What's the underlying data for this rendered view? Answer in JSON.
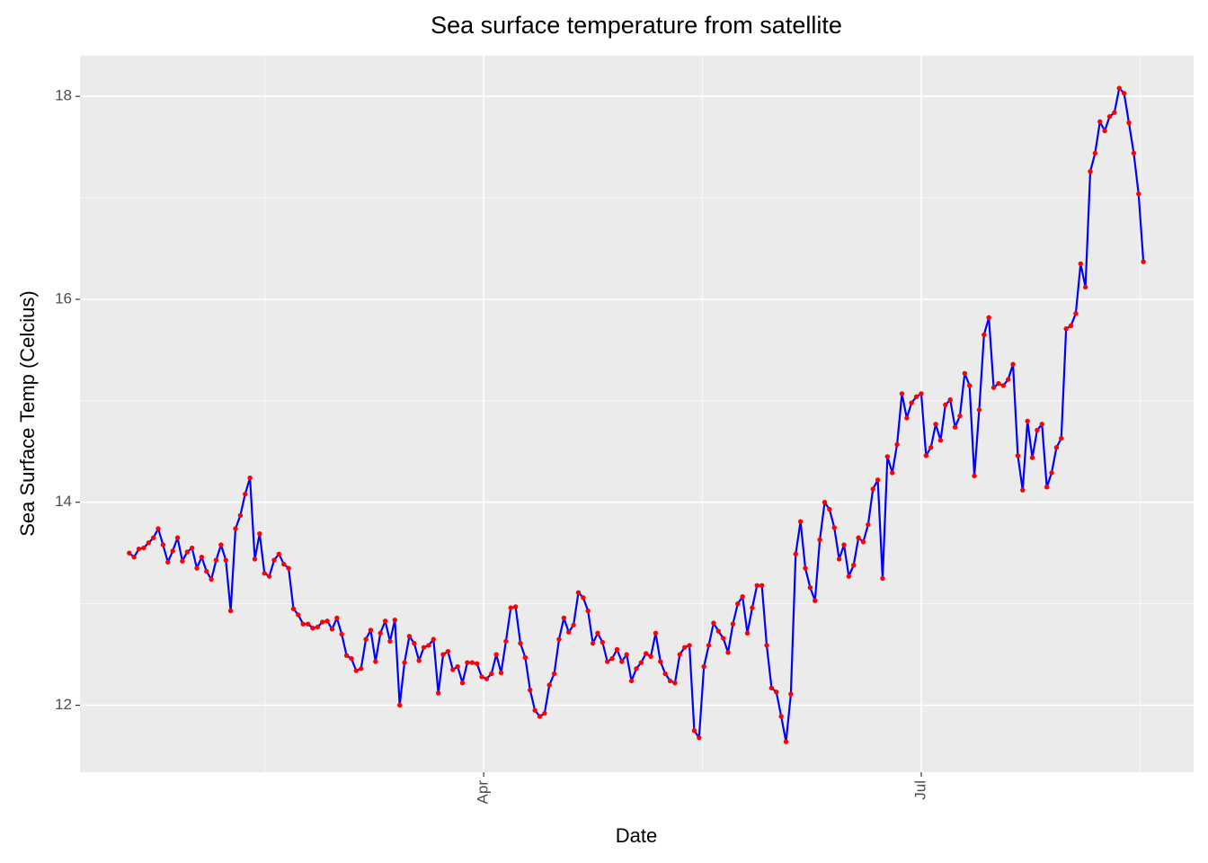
{
  "chart_data": {
    "type": "line",
    "title": "Sea surface temperature from satellite",
    "x_label": "Date",
    "y_label": "Sea Surface Temp (Celcius)",
    "line_color": "#0000ff",
    "point_color": "#ff0000",
    "grid": true,
    "xlim": [
      -10.2,
      220.4
    ],
    "xticks": [
      {
        "value": 73.4,
        "label": "Apr"
      },
      {
        "value": 164,
        "label": "Jul"
      }
    ],
    "ylim": [
      11.34,
      18.4
    ],
    "yticks": [
      12,
      14,
      16,
      18
    ],
    "values": [
      13.5,
      13.46,
      13.54,
      13.55,
      13.6,
      13.65,
      13.74,
      13.58,
      13.41,
      13.52,
      13.65,
      13.42,
      13.51,
      13.55,
      13.35,
      13.46,
      13.32,
      13.24,
      13.43,
      13.58,
      13.43,
      12.93,
      13.74,
      13.87,
      14.08,
      14.24,
      13.44,
      13.69,
      13.3,
      13.27,
      13.43,
      13.49,
      13.39,
      13.35,
      12.95,
      12.89,
      12.8,
      12.8,
      12.76,
      12.77,
      12.82,
      12.83,
      12.75,
      12.86,
      12.7,
      12.49,
      12.46,
      12.34,
      12.36,
      12.65,
      12.74,
      12.43,
      12.71,
      12.83,
      12.63,
      12.84,
      12.0,
      12.42,
      12.68,
      12.61,
      12.44,
      12.57,
      12.59,
      12.65,
      12.12,
      12.5,
      12.53,
      12.35,
      12.38,
      12.22,
      12.42,
      12.42,
      12.41,
      12.28,
      12.26,
      12.31,
      12.5,
      12.32,
      12.63,
      12.96,
      12.97,
      12.61,
      12.47,
      12.15,
      11.95,
      11.89,
      11.92,
      12.2,
      12.31,
      12.65,
      12.86,
      12.72,
      12.79,
      13.11,
      13.06,
      12.93,
      12.61,
      12.71,
      12.62,
      12.43,
      12.46,
      12.55,
      12.43,
      12.5,
      12.24,
      12.36,
      12.42,
      12.51,
      12.48,
      12.71,
      12.43,
      12.31,
      12.24,
      12.22,
      12.5,
      12.57,
      12.59,
      11.75,
      11.68,
      12.38,
      12.59,
      12.81,
      12.73,
      12.66,
      12.52,
      12.8,
      13.0,
      13.07,
      12.71,
      12.96,
      13.18,
      13.18,
      12.59,
      12.17,
      12.13,
      11.89,
      11.64,
      12.11,
      13.49,
      13.81,
      13.35,
      13.16,
      13.03,
      13.63,
      14.0,
      13.93,
      13.75,
      13.44,
      13.58,
      13.27,
      13.38,
      13.65,
      13.61,
      13.78,
      14.13,
      14.22,
      13.25,
      14.45,
      14.29,
      14.57,
      15.07,
      14.83,
      14.98,
      15.04,
      15.07,
      14.46,
      14.54,
      14.77,
      14.61,
      14.96,
      15.01,
      14.74,
      14.85,
      15.27,
      15.15,
      14.26,
      14.91,
      15.65,
      15.82,
      15.13,
      15.17,
      15.15,
      15.21,
      15.36,
      14.46,
      14.12,
      14.8,
      14.44,
      14.71,
      14.77,
      14.15,
      14.29,
      14.54,
      14.63,
      15.71,
      15.74,
      15.86,
      16.35,
      16.12,
      17.26,
      17.44,
      17.75,
      17.66,
      17.8,
      17.84,
      18.08,
      18.03,
      17.74,
      17.44,
      17.04,
      16.37
    ]
  }
}
